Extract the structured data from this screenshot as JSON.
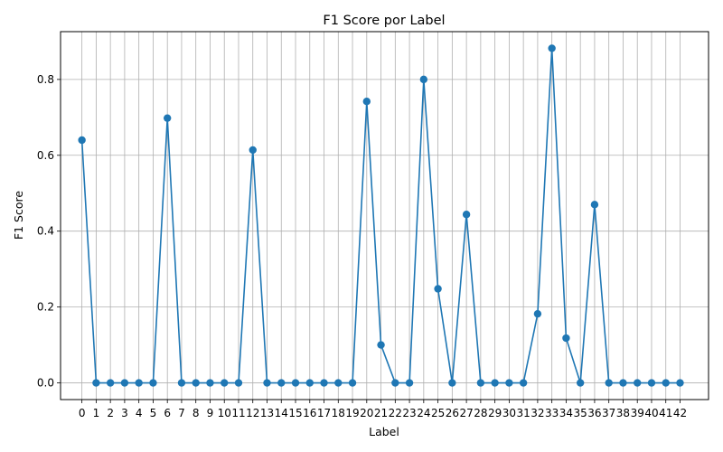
{
  "chart_data": {
    "type": "line",
    "title": "F1 Score por Label",
    "xlabel": "Label",
    "ylabel": "F1 Score",
    "x": [
      0,
      1,
      2,
      3,
      4,
      5,
      6,
      7,
      8,
      9,
      10,
      11,
      12,
      13,
      14,
      15,
      16,
      17,
      18,
      19,
      20,
      21,
      22,
      23,
      24,
      25,
      26,
      27,
      28,
      29,
      30,
      31,
      32,
      33,
      34,
      35,
      36,
      37,
      38,
      39,
      40,
      41,
      42
    ],
    "xticks": [
      "0",
      "1",
      "2",
      "3",
      "4",
      "5",
      "6",
      "7",
      "8",
      "9",
      "10",
      "11",
      "12",
      "13",
      "14",
      "15",
      "16",
      "17",
      "18",
      "19",
      "20",
      "21",
      "22",
      "23",
      "24",
      "25",
      "26",
      "27",
      "28",
      "29",
      "30",
      "31",
      "32",
      "33",
      "34",
      "35",
      "36",
      "37",
      "38",
      "39",
      "40",
      "41",
      "42"
    ],
    "values": [
      0.64,
      0,
      0,
      0,
      0,
      0,
      0.698,
      0,
      0,
      0,
      0,
      0,
      0.614,
      0,
      0,
      0,
      0,
      0,
      0,
      0,
      0.742,
      0.1,
      0,
      0,
      0.8,
      0.248,
      0,
      0.444,
      0,
      0,
      0,
      0,
      0.182,
      0.882,
      0.118,
      0,
      0.47,
      0,
      0,
      0,
      0,
      0,
      0
    ],
    "yticks": [
      0.0,
      0.2,
      0.4,
      0.6,
      0.8
    ],
    "ytick_labels": [
      "0.0",
      "0.2",
      "0.4",
      "0.6",
      "0.8"
    ],
    "xlim": [
      -1.5,
      44.0
    ],
    "ylim": [
      -0.044,
      0.926
    ],
    "grid": true,
    "line_color": "#1f77b4"
  }
}
